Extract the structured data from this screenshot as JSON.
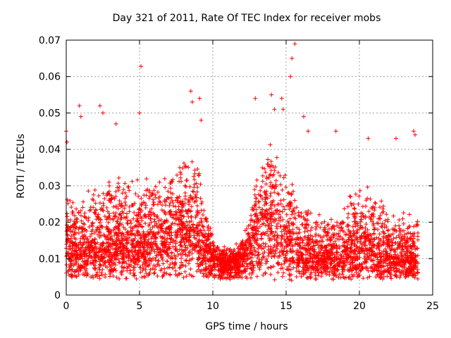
{
  "chart_data": {
    "type": "scatter",
    "title": "Day 321 of 2011, Rate Of TEC Index for receiver mobs",
    "xlabel": "GPS time / hours",
    "ylabel": "ROTI / TECUs",
    "xlim": [
      0,
      25
    ],
    "ylim": [
      0,
      0.07
    ],
    "xticks": [
      "0",
      "5",
      "10",
      "15",
      "20",
      "25"
    ],
    "yticks": [
      "0",
      "0.01",
      "0.02",
      "0.03",
      "0.04",
      "0.05",
      "0.06",
      "0.07"
    ],
    "grid": true,
    "marker": "+",
    "color": "#ff0000",
    "envelope": {
      "x": [
        0,
        1,
        2,
        3,
        4,
        5,
        6,
        7,
        8,
        8.5,
        9,
        9.5,
        10,
        10.5,
        11,
        11.5,
        12,
        12.5,
        13,
        13.5,
        14,
        14.5,
        15,
        15.5,
        16,
        17,
        18,
        19,
        20,
        21,
        22,
        23,
        24
      ],
      "median": [
        0.013,
        0.012,
        0.013,
        0.014,
        0.015,
        0.014,
        0.015,
        0.016,
        0.018,
        0.019,
        0.017,
        0.013,
        0.011,
        0.009,
        0.009,
        0.009,
        0.01,
        0.013,
        0.018,
        0.02,
        0.022,
        0.02,
        0.016,
        0.014,
        0.012,
        0.011,
        0.01,
        0.011,
        0.013,
        0.013,
        0.011,
        0.01,
        0.009
      ],
      "spread": [
        0.01,
        0.01,
        0.011,
        0.012,
        0.012,
        0.012,
        0.011,
        0.011,
        0.013,
        0.014,
        0.013,
        0.007,
        0.004,
        0.003,
        0.003,
        0.003,
        0.004,
        0.007,
        0.012,
        0.013,
        0.014,
        0.013,
        0.012,
        0.01,
        0.009,
        0.008,
        0.008,
        0.009,
        0.012,
        0.011,
        0.009,
        0.008,
        0.008
      ]
    },
    "outliers": [
      [
        0.0,
        0.045
      ],
      [
        0.05,
        0.042
      ],
      [
        0.9,
        0.052
      ],
      [
        1.0,
        0.049
      ],
      [
        2.3,
        0.052
      ],
      [
        2.5,
        0.05
      ],
      [
        3.4,
        0.047
      ],
      [
        5.1,
        0.0628
      ],
      [
        5.0,
        0.05
      ],
      [
        8.5,
        0.056
      ],
      [
        8.6,
        0.053
      ],
      [
        9.1,
        0.054
      ],
      [
        9.2,
        0.048
      ],
      [
        12.9,
        0.054
      ],
      [
        14.0,
        0.055
      ],
      [
        14.2,
        0.051
      ],
      [
        14.7,
        0.054
      ],
      [
        14.8,
        0.051
      ],
      [
        15.3,
        0.06
      ],
      [
        15.4,
        0.065
      ],
      [
        15.6,
        0.069
      ],
      [
        16.2,
        0.049
      ],
      [
        16.5,
        0.045
      ],
      [
        18.4,
        0.045
      ],
      [
        20.6,
        0.043
      ],
      [
        22.5,
        0.043
      ],
      [
        23.7,
        0.045
      ],
      [
        23.8,
        0.044
      ]
    ],
    "n_points": 4200
  }
}
